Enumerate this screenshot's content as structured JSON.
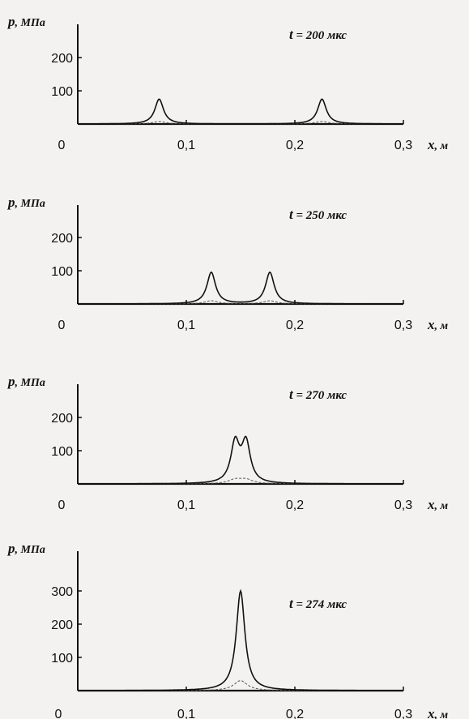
{
  "chart_data": [
    {
      "type": "line",
      "annotation": {
        "var": "t",
        "eq": "=",
        "value": "200",
        "unit": "мкс"
      },
      "ylabel": {
        "var": "p",
        "unit": ", МПа"
      },
      "xlabel": {
        "var": "x",
        "unit": ", м"
      },
      "x_origin_label": "0",
      "xticks": [
        0.1,
        0.2,
        0.3
      ],
      "xtick_labels": [
        "0,1",
        "0,2",
        "0,3"
      ],
      "yticks": [
        100,
        200
      ],
      "ytick_labels": [
        "100",
        "200"
      ],
      "xlim": [
        0,
        0.3
      ],
      "ylim": [
        0,
        300
      ],
      "peaks": [
        {
          "x": 0.075,
          "y": 75
        },
        {
          "x": 0.225,
          "y": 75
        }
      ],
      "grid": false,
      "legend": "none"
    },
    {
      "type": "line",
      "annotation": {
        "var": "t",
        "eq": "=",
        "value": "250",
        "unit": "мкс"
      },
      "ylabel": {
        "var": "p",
        "unit": ", МПа"
      },
      "xlabel": {
        "var": "x",
        "unit": ", м"
      },
      "x_origin_label": "0",
      "xticks": [
        0.1,
        0.2,
        0.3
      ],
      "xtick_labels": [
        "0,1",
        "0,2",
        "0,3"
      ],
      "yticks": [
        100,
        200
      ],
      "ytick_labels": [
        "100",
        "200"
      ],
      "xlim": [
        0,
        0.3
      ],
      "ylim": [
        0,
        300
      ],
      "peaks": [
        {
          "x": 0.123,
          "y": 95
        },
        {
          "x": 0.177,
          "y": 95
        }
      ],
      "grid": false,
      "legend": "none"
    },
    {
      "type": "line",
      "annotation": {
        "var": "t",
        "eq": "=",
        "value": "270",
        "unit": "мкс"
      },
      "ylabel": {
        "var": "p",
        "unit": ", МПа"
      },
      "xlabel": {
        "var": "x",
        "unit": ", м"
      },
      "x_origin_label": "0",
      "xticks": [
        0.1,
        0.2,
        0.3
      ],
      "xtick_labels": [
        "0,1",
        "0,2",
        "0,3"
      ],
      "yticks": [
        100,
        200
      ],
      "ytick_labels": [
        "100",
        "200"
      ],
      "xlim": [
        0,
        0.3
      ],
      "ylim": [
        0,
        300
      ],
      "peaks": [
        {
          "x": 0.145,
          "y": 120
        },
        {
          "x": 0.155,
          "y": 120
        }
      ],
      "grid": false,
      "legend": "none"
    },
    {
      "type": "line",
      "annotation": {
        "var": "t",
        "eq": "=",
        "value": "274",
        "unit": "мкс"
      },
      "ylabel": {
        "var": "p",
        "unit": ", МПа"
      },
      "xlabel": {
        "var": "x",
        "unit": ", м"
      },
      "x_origin_label": "0",
      "xticks": [
        0.1,
        0.2,
        0.3
      ],
      "xtick_labels": [
        "0,1",
        "0,2",
        "0,3"
      ],
      "yticks": [
        100,
        200,
        300
      ],
      "ytick_labels": [
        "100",
        "200",
        "300"
      ],
      "xlim": [
        0,
        0.3
      ],
      "ylim": [
        0,
        370
      ],
      "peaks": [
        {
          "x": 0.15,
          "y": 300
        }
      ],
      "grid": false,
      "legend": "none"
    }
  ]
}
